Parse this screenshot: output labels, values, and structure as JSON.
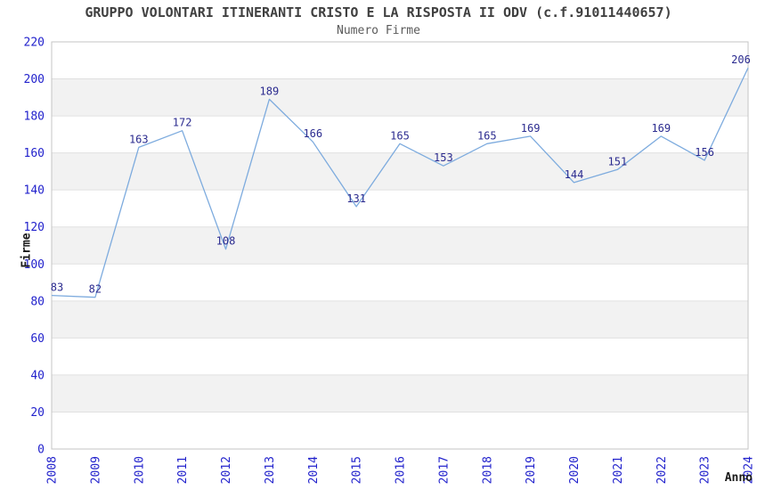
{
  "chart_data": {
    "type": "line",
    "title": "GRUPPO VOLONTARI ITINERANTI CRISTO E LA RISPOSTA II ODV (c.f.91011440657)",
    "subtitle": "Numero Firme",
    "xlabel": "Anno",
    "ylabel": "Firme",
    "categories": [
      "2008",
      "2009",
      "2010",
      "2011",
      "2012",
      "2013",
      "2014",
      "2015",
      "2016",
      "2017",
      "2018",
      "2019",
      "2020",
      "2021",
      "2022",
      "2023",
      "2024"
    ],
    "values": [
      83,
      82,
      163,
      172,
      108,
      189,
      166,
      131,
      165,
      153,
      165,
      169,
      144,
      151,
      169,
      156,
      206
    ],
    "ylim": [
      0,
      220
    ],
    "ytick_step": 20,
    "grid": "horizontal-bands",
    "legend": "none",
    "colors": {
      "line": "#7dabde",
      "tick_label": "#2222cc",
      "point_label": "#2b2b8f",
      "band": "#f2f2f2",
      "gridline": "#e0e0e0",
      "border": "#c4c4c4",
      "title": "#404040",
      "subtitle": "#5a5a5a",
      "axis_title": "#1a1a1a"
    }
  }
}
